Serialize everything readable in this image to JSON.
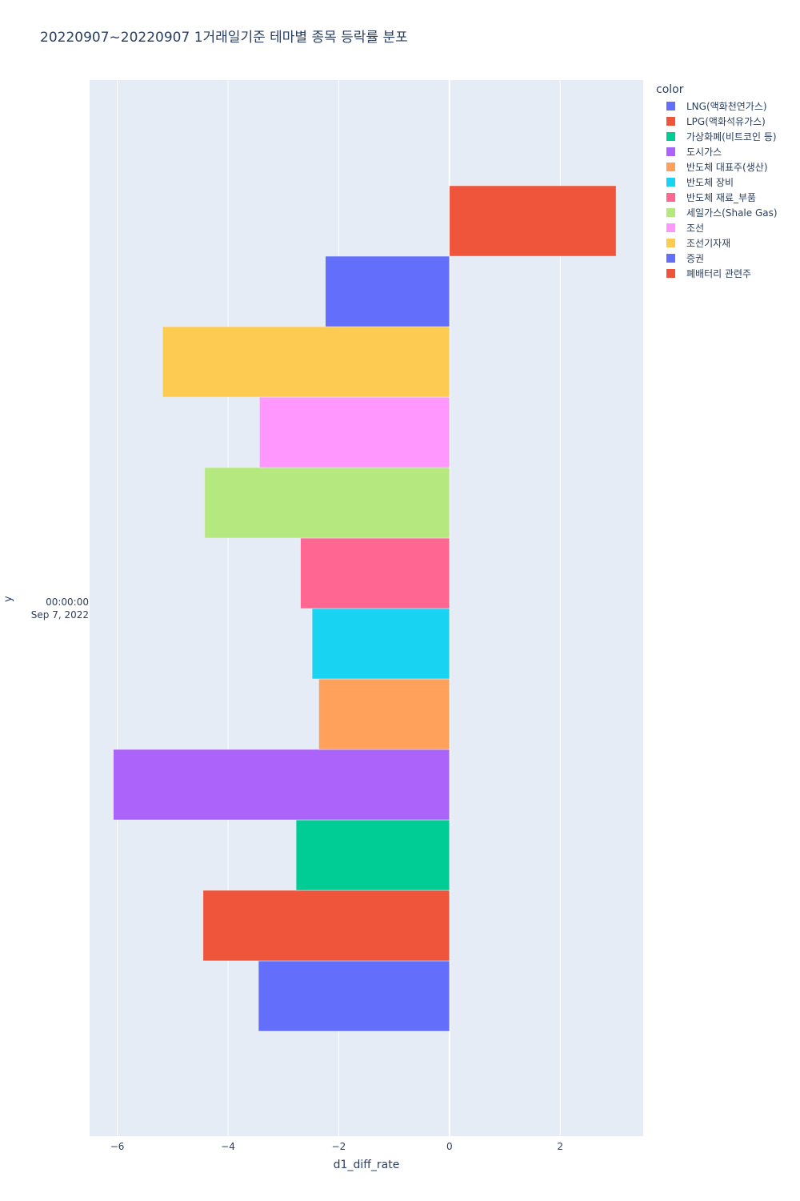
{
  "chart_data": {
    "type": "bar",
    "orientation": "horizontal",
    "title": "20220907~20220907 1거래일기준 테마별 종목 등락률 분포",
    "xlabel": "d1_diff_rate",
    "ylabel": "y",
    "ytick_time": "00:00:00",
    "ytick_date": "Sep 7, 2022",
    "legend_title": "color",
    "legend_placement": "top-right",
    "xlim": [
      -6.5,
      3.5
    ],
    "xticks": [
      {
        "value": -6,
        "label": "−6"
      },
      {
        "value": -4,
        "label": "−4"
      },
      {
        "value": -2,
        "label": "−2"
      },
      {
        "value": 0,
        "label": "0"
      },
      {
        "value": 2,
        "label": "2"
      }
    ],
    "grid": true,
    "background_color": "#e5ecf6",
    "series": [
      {
        "name": "LNG(액화천연가스)",
        "value": -3.45,
        "color": "#636efa"
      },
      {
        "name": "LPG(액화석유가스)",
        "value": -4.45,
        "color": "#ef553b"
      },
      {
        "name": "가상화폐(비트코인 등)",
        "value": -2.77,
        "color": "#00cc96"
      },
      {
        "name": "도시가스",
        "value": -6.07,
        "color": "#ab63fa"
      },
      {
        "name": "반도체 대표주(생산)",
        "value": -2.36,
        "color": "#ffa15a"
      },
      {
        "name": "반도체 장비",
        "value": -2.48,
        "color": "#19d3f3"
      },
      {
        "name": "반도체 재료_부품",
        "value": -2.69,
        "color": "#ff6692"
      },
      {
        "name": "세일가스(Shale Gas)",
        "value": -4.42,
        "color": "#b6e880"
      },
      {
        "name": "조선",
        "value": -3.43,
        "color": "#ff97ff"
      },
      {
        "name": "조선기자재",
        "value": -5.18,
        "color": "#fecb52"
      },
      {
        "name": "증권",
        "value": -2.24,
        "color": "#636efa"
      },
      {
        "name": "폐배터리 관련주",
        "value": 3.01,
        "color": "#ef553b"
      }
    ]
  }
}
